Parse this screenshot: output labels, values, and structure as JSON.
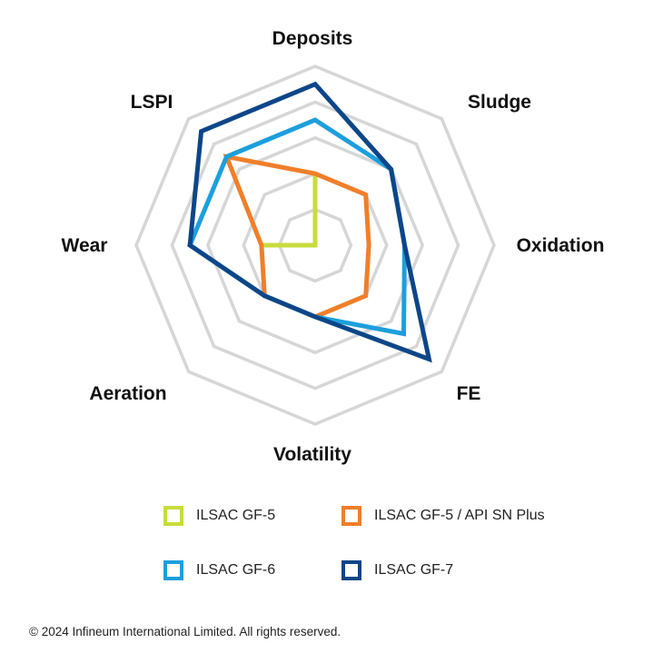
{
  "chart_data": {
    "type": "radar",
    "title": "",
    "axes": [
      "Deposits",
      "Sludge",
      "Oxidation",
      "FE",
      "Volatility",
      "Aeration",
      "Wear",
      "LSPI"
    ],
    "rmax": 5,
    "grid_levels": [
      1,
      2,
      3,
      4,
      5
    ],
    "series": [
      {
        "name": "ILSAC GF-5",
        "color": "#c8dc3c",
        "values": [
          2,
          0,
          0,
          0,
          0,
          0,
          1.5,
          0
        ]
      },
      {
        "name": "ILSAC GF-5 / API SN Plus",
        "color": "#f07f2a",
        "values": [
          2,
          2,
          1.5,
          2,
          2,
          2,
          1.5,
          3.5
        ]
      },
      {
        "name": "ILSAC GF-6",
        "color": "#1c9fdc",
        "values": [
          3.5,
          3,
          2.5,
          3.5,
          2,
          2,
          3.5,
          3.5
        ]
      },
      {
        "name": "ILSAC GF-7",
        "color": "#0d4688",
        "values": [
          4.5,
          3,
          2.5,
          4.5,
          2,
          2,
          3.5,
          4.5
        ]
      }
    ]
  },
  "legend": [
    {
      "label": "ILSAC GF-5",
      "color": "#c8dc3c"
    },
    {
      "label": "ILSAC GF-5 / API SN Plus",
      "color": "#f07f2a"
    },
    {
      "label": "ILSAC GF-6",
      "color": "#1c9fdc"
    },
    {
      "label": "ILSAC GF-7",
      "color": "#0d4688"
    }
  ],
  "footer": {
    "copyright": "© 2024 Infineum International Limited. All rights reserved."
  }
}
